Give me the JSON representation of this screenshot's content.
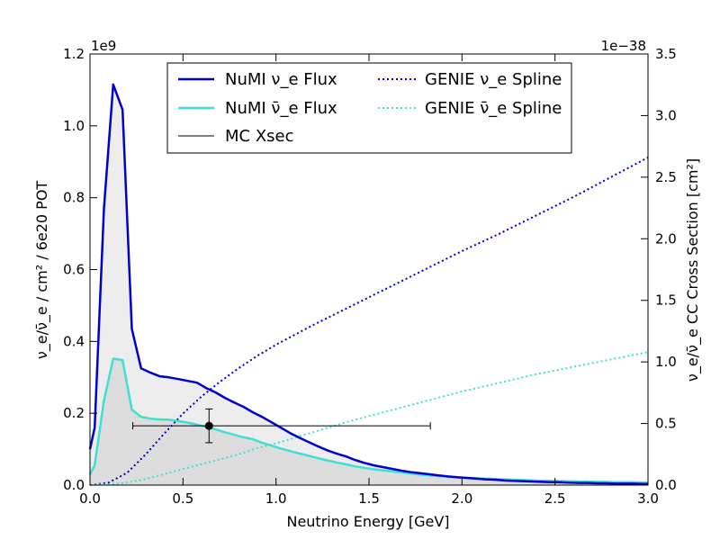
{
  "chart_data": {
    "type": "line",
    "xlabel": "Neutrino Energy [GeV]",
    "ylabel_left": "ν_e/ν̄_e  / cm² / 6e20 POT",
    "ylabel_right": "ν_e/ν̄_e CC Cross Section [cm²]",
    "left_offset_text": "1e9",
    "right_offset_text": "1e−38",
    "xlim": [
      0.0,
      3.0
    ],
    "ylim_left": [
      0.0,
      1.2
    ],
    "ylim_right": [
      0.0,
      3.5
    ],
    "x_ticks": [
      "0.0",
      "0.5",
      "1.0",
      "1.5",
      "2.0",
      "2.5",
      "3.0"
    ],
    "y_left_ticks": [
      "0.0",
      "0.2",
      "0.4",
      "0.6",
      "0.8",
      "1.0",
      "1.2"
    ],
    "y_right_ticks": [
      "0.0",
      "0.5",
      "1.0",
      "1.5",
      "2.0",
      "2.5",
      "3.0",
      "3.5"
    ],
    "legend_position": "top-center",
    "colors": {
      "nue": "#0000cd",
      "nuebar": "#40e0d0",
      "mc": "#000000",
      "fill": "#dcdcdc"
    },
    "series": [
      {
        "name": "NuMI ν_e Flux",
        "axis": "left",
        "style": "solid",
        "x": [
          0.0,
          0.025,
          0.075,
          0.125,
          0.175,
          0.225,
          0.275,
          0.325,
          0.375,
          0.425,
          0.475,
          0.525,
          0.575,
          0.625,
          0.675,
          0.725,
          0.775,
          0.825,
          0.875,
          0.925,
          0.975,
          1.025,
          1.075,
          1.125,
          1.175,
          1.225,
          1.275,
          1.325,
          1.375,
          1.425,
          1.475,
          1.525,
          1.575,
          1.625,
          1.675,
          1.725,
          1.775,
          1.825,
          1.875,
          1.925,
          1.975,
          2.025,
          2.075,
          2.125,
          2.175,
          2.225,
          2.275,
          2.325,
          2.375,
          2.425,
          2.475,
          2.525,
          2.575,
          2.625,
          2.675,
          2.725,
          2.775,
          2.825,
          2.875,
          2.925,
          2.975,
          3.0
        ],
        "y": [
          0.1,
          0.16,
          0.77,
          1.115,
          1.045,
          0.435,
          0.325,
          0.313,
          0.303,
          0.3,
          0.295,
          0.29,
          0.285,
          0.27,
          0.258,
          0.243,
          0.23,
          0.218,
          0.203,
          0.19,
          0.175,
          0.16,
          0.145,
          0.132,
          0.12,
          0.108,
          0.097,
          0.088,
          0.08,
          0.07,
          0.062,
          0.055,
          0.05,
          0.045,
          0.04,
          0.036,
          0.033,
          0.03,
          0.027,
          0.024,
          0.022,
          0.02,
          0.018,
          0.016,
          0.015,
          0.013,
          0.012,
          0.011,
          0.01,
          0.009,
          0.008,
          0.008,
          0.007,
          0.006,
          0.006,
          0.005,
          0.005,
          0.004,
          0.004,
          0.004,
          0.003,
          0.003
        ]
      },
      {
        "name": "NuMI ν̄_e Flux",
        "axis": "left",
        "style": "solid",
        "x": [
          0.0,
          0.025,
          0.075,
          0.125,
          0.175,
          0.225,
          0.275,
          0.325,
          0.375,
          0.425,
          0.475,
          0.525,
          0.575,
          0.625,
          0.675,
          0.725,
          0.775,
          0.825,
          0.875,
          0.925,
          0.975,
          1.025,
          1.075,
          1.125,
          1.175,
          1.225,
          1.275,
          1.325,
          1.375,
          1.425,
          1.475,
          1.525,
          1.575,
          1.625,
          1.675,
          1.725,
          1.775,
          1.825,
          1.875,
          1.925,
          1.975,
          2.025,
          2.075,
          2.125,
          2.175,
          2.225,
          2.275,
          2.325,
          2.375,
          2.425,
          2.475,
          2.525,
          2.575,
          2.625,
          2.675,
          2.725,
          2.775,
          2.825,
          2.875,
          2.925,
          2.975,
          3.0
        ],
        "y": [
          0.03,
          0.055,
          0.235,
          0.352,
          0.348,
          0.21,
          0.19,
          0.185,
          0.183,
          0.182,
          0.178,
          0.174,
          0.168,
          0.162,
          0.155,
          0.147,
          0.14,
          0.133,
          0.128,
          0.118,
          0.11,
          0.102,
          0.095,
          0.088,
          0.082,
          0.075,
          0.069,
          0.063,
          0.058,
          0.052,
          0.048,
          0.044,
          0.041,
          0.038,
          0.035,
          0.032,
          0.029,
          0.027,
          0.025,
          0.023,
          0.021,
          0.02,
          0.019,
          0.018,
          0.017,
          0.016,
          0.015,
          0.014,
          0.013,
          0.012,
          0.012,
          0.011,
          0.011,
          0.01,
          0.01,
          0.009,
          0.009,
          0.008,
          0.008,
          0.008,
          0.007,
          0.007
        ]
      },
      {
        "name": "GENIE ν_e Spline",
        "axis": "right",
        "style": "dotted",
        "x": [
          0.0,
          0.1,
          0.2,
          0.3,
          0.4,
          0.5,
          0.6,
          0.7,
          0.8,
          0.9,
          1.0,
          1.2,
          1.4,
          1.6,
          1.8,
          2.0,
          2.2,
          2.4,
          2.6,
          2.8,
          3.0
        ],
        "y": [
          0.0,
          0.02,
          0.1,
          0.25,
          0.42,
          0.58,
          0.72,
          0.84,
          0.95,
          1.05,
          1.14,
          1.3,
          1.45,
          1.6,
          1.75,
          1.9,
          2.04,
          2.19,
          2.34,
          2.5,
          2.66
        ]
      },
      {
        "name": "GENIE ν̄_e Spline",
        "axis": "right",
        "style": "dotted",
        "x": [
          0.0,
          0.1,
          0.2,
          0.3,
          0.4,
          0.5,
          0.6,
          0.7,
          0.8,
          0.9,
          1.0,
          1.2,
          1.4,
          1.6,
          1.8,
          2.0,
          2.2,
          2.4,
          2.6,
          2.8,
          3.0
        ],
        "y": [
          0.0,
          0.005,
          0.02,
          0.05,
          0.09,
          0.13,
          0.17,
          0.21,
          0.25,
          0.3,
          0.34,
          0.43,
          0.52,
          0.6,
          0.68,
          0.76,
          0.83,
          0.9,
          0.96,
          1.02,
          1.08
        ]
      }
    ],
    "mc_xsec": {
      "name": "MC Xsec",
      "x": 0.64,
      "x_err_low": 0.23,
      "x_err_high": 1.83,
      "y": 0.165,
      "y_err_low": 0.118,
      "y_err_high": 0.212
    }
  }
}
